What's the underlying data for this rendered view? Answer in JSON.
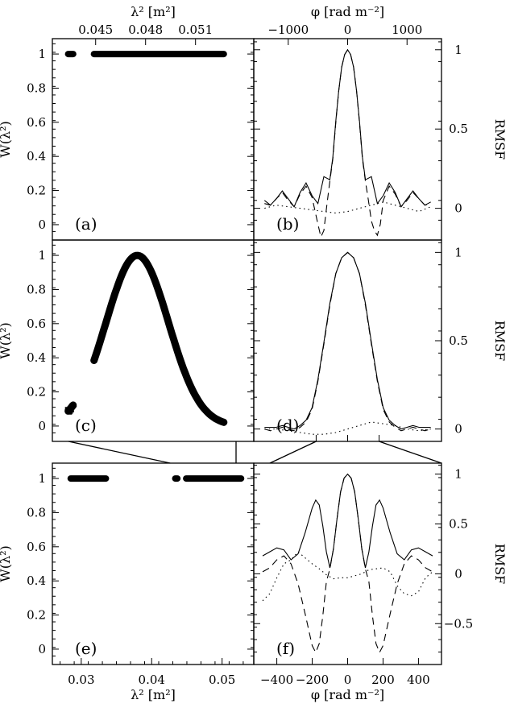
{
  "chart_data": [
    {
      "panel": "a",
      "type": "scatter",
      "label": "(a)",
      "ylabel": "W(λ²)",
      "top_xlabel": "λ² [m²]",
      "top_xticks": [
        "0.045",
        "0.048",
        "0.051"
      ],
      "top_xtick_values": [
        0.045,
        0.048,
        0.051
      ],
      "top_xlim": [
        0.0424,
        0.0545
      ],
      "ylim": [
        -0.09,
        1.09
      ],
      "yticks": [
        0,
        0.2,
        0.4,
        0.6,
        0.8,
        1
      ],
      "ytick_labels": [
        "0",
        "0.2",
        "0.4",
        "0.6",
        "0.8",
        "1"
      ],
      "segments": [
        {
          "x": [
            0.04335,
            0.04365
          ],
          "y": 1
        },
        {
          "x": [
            0.0449,
            0.0527
          ],
          "y": 1
        }
      ]
    },
    {
      "panel": "b",
      "type": "line",
      "label": "(b)",
      "ylabel": "RMSF",
      "top_xlabel": "φ [rad m⁻²]",
      "top_xticks": [
        "−1000",
        "0",
        "1000"
      ],
      "top_xtick_values": [
        -1000,
        0,
        1000
      ],
      "xlim": [
        -1580,
        1580
      ],
      "ylim": [
        -0.2,
        1.07
      ],
      "yticks": [
        0,
        0.5,
        1
      ],
      "ytick_labels": [
        "0",
        "0.5",
        "1"
      ],
      "series": [
        {
          "style": "solid",
          "x": [
            -1400,
            -1300,
            -1200,
            -1100,
            -1000,
            -900,
            -800,
            -700,
            -600,
            -500,
            -400,
            -300,
            -250,
            -200,
            -150,
            -100,
            -50,
            0,
            50,
            100,
            150,
            200,
            250,
            300,
            400,
            500,
            600,
            700,
            800,
            900,
            1000,
            1100,
            1200,
            1300,
            1400
          ],
          "y": [
            0.05,
            0.02,
            0.06,
            0.11,
            0.06,
            0.01,
            0.1,
            0.16,
            0.08,
            0.03,
            0.2,
            0.18,
            0.32,
            0.55,
            0.74,
            0.89,
            0.97,
            1.0,
            0.97,
            0.89,
            0.74,
            0.55,
            0.32,
            0.18,
            0.2,
            0.03,
            0.08,
            0.16,
            0.1,
            0.01,
            0.06,
            0.11,
            0.06,
            0.02,
            0.04
          ]
        },
        {
          "style": "dashed",
          "x": [
            -1400,
            -1300,
            -1200,
            -1100,
            -1000,
            -900,
            -800,
            -700,
            -600,
            -500,
            -450,
            -400,
            -350,
            -300,
            -250,
            -200,
            -150,
            -100,
            -50,
            0,
            50,
            100,
            150,
            200,
            250,
            300,
            350,
            400,
            450,
            500,
            550,
            600,
            700,
            800,
            900,
            1000,
            1100,
            1200,
            1300,
            1400
          ],
          "y": [
            0.03,
            0.02,
            0.06,
            0.1,
            0.05,
            0.01,
            0.09,
            0.14,
            0.07,
            -0.1,
            -0.18,
            -0.14,
            0.02,
            0.17,
            0.31,
            0.54,
            0.74,
            0.89,
            0.97,
            1.0,
            0.97,
            0.89,
            0.74,
            0.54,
            0.31,
            0.17,
            0.05,
            -0.08,
            -0.14,
            -0.17,
            -0.1,
            0.05,
            0.14,
            0.09,
            0.01,
            0.05,
            0.1,
            0.06,
            0.02,
            0.03
          ]
        },
        {
          "style": "dotted",
          "x": [
            -1400,
            -1200,
            -1000,
            -800,
            -600,
            -400,
            -200,
            0,
            200,
            400,
            600,
            800,
            1000,
            1200,
            1400
          ],
          "y": [
            0.0,
            0.02,
            0.01,
            0.0,
            -0.01,
            -0.02,
            -0.03,
            -0.02,
            0.0,
            0.02,
            0.04,
            0.02,
            0.0,
            -0.02,
            0.01
          ]
        }
      ]
    },
    {
      "panel": "c",
      "type": "scatter",
      "label": "(c)",
      "ylabel": "W(λ²)",
      "xlim": [
        0.0424,
        0.0545
      ],
      "ylim": [
        -0.09,
        1.09
      ],
      "yticks": [
        0,
        0.2,
        0.4,
        0.6,
        0.8,
        1
      ],
      "ytick_labels": [
        "0",
        "0.2",
        "0.4",
        "0.6",
        "0.8",
        "1"
      ],
      "segments": [
        {
          "x": [
            0.04335,
            0.04365
          ],
          "gaussian": true
        },
        {
          "x": [
            0.0449,
            0.0527
          ],
          "gaussian": true
        }
      ],
      "gaussian": {
        "center": 0.0475,
        "sigma": 0.00188
      }
    },
    {
      "panel": "d",
      "type": "line",
      "label": "(d)",
      "ylabel": "RMSF",
      "xlim": [
        -1580,
        1580
      ],
      "ylim": [
        -0.07,
        1.07
      ],
      "yticks": [
        0,
        0.5,
        1
      ],
      "ytick_labels": [
        "0",
        "0.5",
        "1"
      ],
      "series": [
        {
          "style": "solid",
          "x": [
            -1400,
            -1300,
            -1200,
            -1100,
            -1000,
            -900,
            -800,
            -700,
            -600,
            -500,
            -400,
            -300,
            -200,
            -100,
            0,
            100,
            200,
            300,
            400,
            500,
            600,
            700,
            800,
            900,
            1000,
            1100,
            1200,
            1300,
            1400
          ],
          "y": [
            0.01,
            0.01,
            0.01,
            0.02,
            0.01,
            0.0,
            0.02,
            0.05,
            0.12,
            0.28,
            0.49,
            0.71,
            0.88,
            0.97,
            1.0,
            0.97,
            0.88,
            0.71,
            0.49,
            0.28,
            0.12,
            0.05,
            0.02,
            0.0,
            0.01,
            0.02,
            0.01,
            0.01,
            0.01
          ]
        },
        {
          "style": "dashed",
          "x": [
            -1400,
            -1300,
            -1200,
            -1100,
            -1000,
            -900,
            -800,
            -700,
            -600,
            -500,
            -400,
            -300,
            -200,
            -100,
            0,
            100,
            200,
            300,
            400,
            500,
            600,
            700,
            800,
            900,
            1000,
            1100,
            1200,
            1300,
            1400
          ],
          "y": [
            0.0,
            -0.01,
            0.0,
            0.01,
            0.0,
            -0.01,
            0.01,
            0.04,
            0.11,
            0.27,
            0.48,
            0.7,
            0.88,
            0.97,
            1.0,
            0.97,
            0.88,
            0.7,
            0.48,
            0.27,
            0.11,
            0.04,
            0.01,
            -0.01,
            0.0,
            0.01,
            0.0,
            -0.01,
            0.0
          ]
        },
        {
          "style": "dotted",
          "x": [
            -1400,
            -1200,
            -1000,
            -800,
            -600,
            -400,
            -200,
            0,
            200,
            400,
            600,
            800,
            1000,
            1200,
            1400
          ],
          "y": [
            0.0,
            0.0,
            -0.01,
            -0.02,
            -0.03,
            -0.03,
            -0.02,
            0.0,
            0.02,
            0.04,
            0.03,
            0.02,
            0.0,
            -0.01,
            0.0
          ]
        }
      ]
    },
    {
      "panel": "e",
      "type": "scatter",
      "label": "(e)",
      "ylabel": "W(λ²)",
      "xlabel": "λ² [m²]",
      "xticks": [
        "0.03",
        "0.04",
        "0.05"
      ],
      "xtick_values": [
        0.03,
        0.04,
        0.05
      ],
      "xlim": [
        0.0259,
        0.0545
      ],
      "ylim": [
        -0.09,
        1.09
      ],
      "yticks": [
        0,
        0.2,
        0.4,
        0.6,
        0.8,
        1
      ],
      "ytick_labels": [
        "0",
        "0.2",
        "0.4",
        "0.6",
        "0.8",
        "1"
      ],
      "segments": [
        {
          "x": [
            0.0285,
            0.0335
          ],
          "y": 1
        },
        {
          "x": [
            0.04335,
            0.04365
          ],
          "y": 1
        },
        {
          "x": [
            0.0449,
            0.0527
          ],
          "y": 1
        }
      ]
    },
    {
      "panel": "f",
      "type": "line",
      "label": "(f)",
      "ylabel": "RMSF",
      "xlabel": "φ [rad m⁻²]",
      "xticks": [
        "−400",
        "−200",
        "0",
        "200",
        "400"
      ],
      "xtick_values": [
        -400,
        -200,
        0,
        200,
        400
      ],
      "xlim": [
        -530,
        530
      ],
      "ylim": [
        -0.91,
        1.11
      ],
      "yticks": [
        -0.5,
        0,
        0.5,
        1
      ],
      "ytick_labels": [
        "−0.5",
        "0",
        "0.5",
        "1"
      ],
      "series": [
        {
          "style": "solid",
          "x": [
            -480,
            -440,
            -400,
            -360,
            -320,
            -280,
            -240,
            -200,
            -180,
            -160,
            -140,
            -120,
            -100,
            -80,
            -60,
            -40,
            -20,
            0,
            20,
            40,
            60,
            80,
            100,
            120,
            140,
            160,
            180,
            200,
            240,
            280,
            320,
            360,
            400,
            440,
            480
          ],
          "y": [
            0.18,
            0.22,
            0.26,
            0.24,
            0.14,
            0.2,
            0.41,
            0.66,
            0.74,
            0.69,
            0.48,
            0.22,
            0.06,
            0.25,
            0.55,
            0.82,
            0.96,
            1.0,
            0.96,
            0.82,
            0.55,
            0.25,
            0.06,
            0.22,
            0.48,
            0.69,
            0.74,
            0.66,
            0.41,
            0.2,
            0.14,
            0.24,
            0.26,
            0.22,
            0.18
          ]
        },
        {
          "style": "dashed",
          "x": [
            -480,
            -440,
            -400,
            -360,
            -320,
            -280,
            -240,
            -200,
            -180,
            -160,
            -140,
            -120,
            -100,
            -80,
            -60,
            -40,
            -20,
            0,
            20,
            40,
            60,
            80,
            100,
            120,
            140,
            160,
            180,
            200,
            240,
            280,
            320,
            360,
            400,
            440,
            480
          ],
          "y": [
            0.02,
            0.06,
            0.14,
            0.18,
            0.1,
            -0.1,
            -0.4,
            -0.72,
            -0.79,
            -0.7,
            -0.42,
            -0.08,
            0.05,
            0.25,
            0.55,
            0.82,
            0.96,
            1.0,
            0.96,
            0.82,
            0.55,
            0.25,
            0.05,
            -0.08,
            -0.42,
            -0.7,
            -0.79,
            -0.72,
            -0.4,
            -0.1,
            0.1,
            0.18,
            0.14,
            0.06,
            0.02
          ]
        },
        {
          "style": "dotted",
          "x": [
            -480,
            -440,
            -400,
            -360,
            -320,
            -280,
            -240,
            -200,
            -160,
            -120,
            -80,
            -40,
            0,
            40,
            80,
            120,
            160,
            200,
            240,
            280,
            320,
            360,
            400,
            440,
            480
          ],
          "y": [
            -0.27,
            -0.2,
            -0.04,
            0.1,
            0.14,
            0.22,
            0.16,
            0.1,
            0.05,
            -0.01,
            -0.05,
            -0.04,
            -0.04,
            -0.02,
            0.0,
            0.04,
            0.05,
            0.06,
            0.02,
            -0.12,
            -0.2,
            -0.22,
            -0.18,
            -0.04,
            0.02
          ]
        }
      ]
    }
  ]
}
